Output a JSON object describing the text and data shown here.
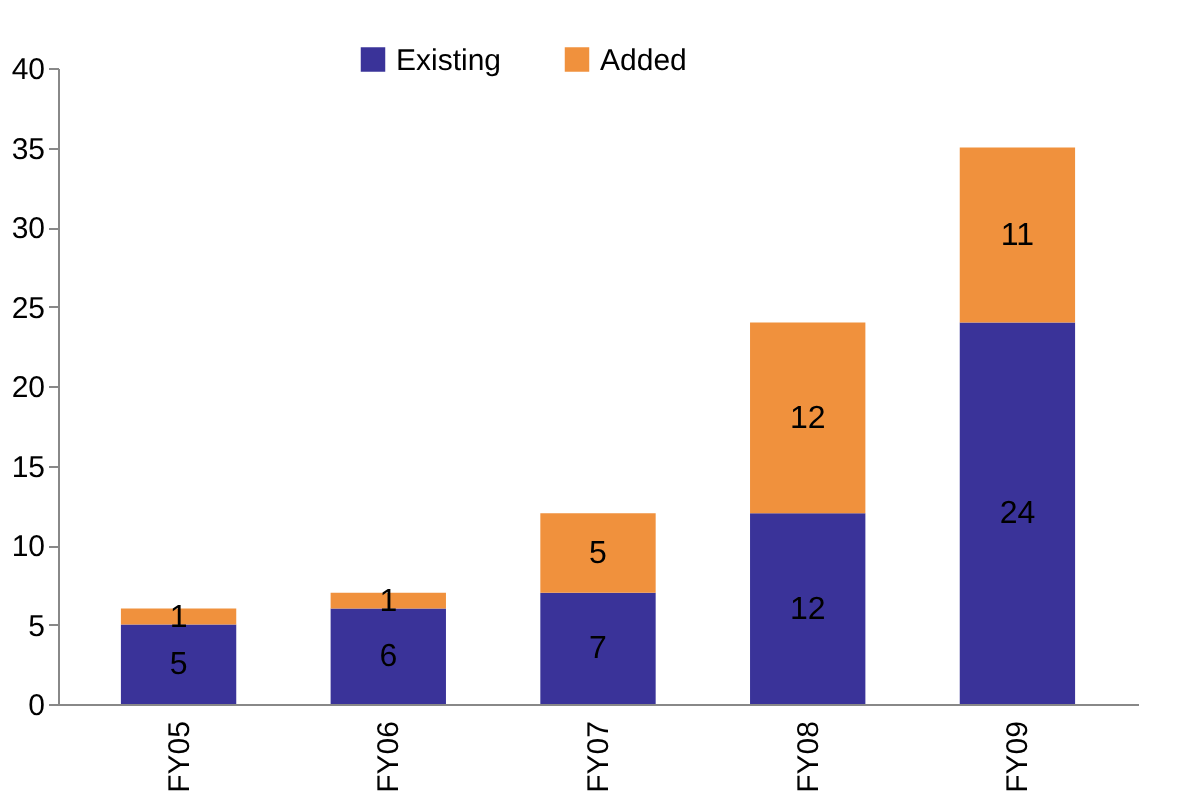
{
  "chart_data": {
    "type": "bar",
    "stacked": true,
    "categories": [
      "FY05",
      "FY06",
      "FY07",
      "FY08",
      "FY09"
    ],
    "series": [
      {
        "name": "Existing",
        "color": "#3a3399",
        "values": [
          5,
          6,
          7,
          12,
          24
        ]
      },
      {
        "name": "Added",
        "color": "#f0913d",
        "values": [
          1,
          1,
          5,
          12,
          11
        ]
      }
    ],
    "ylim": [
      0,
      40
    ],
    "yticks": [
      0,
      5,
      10,
      15,
      20,
      25,
      30,
      35,
      40
    ],
    "grid": false,
    "legend": "top",
    "data_labels": true
  }
}
